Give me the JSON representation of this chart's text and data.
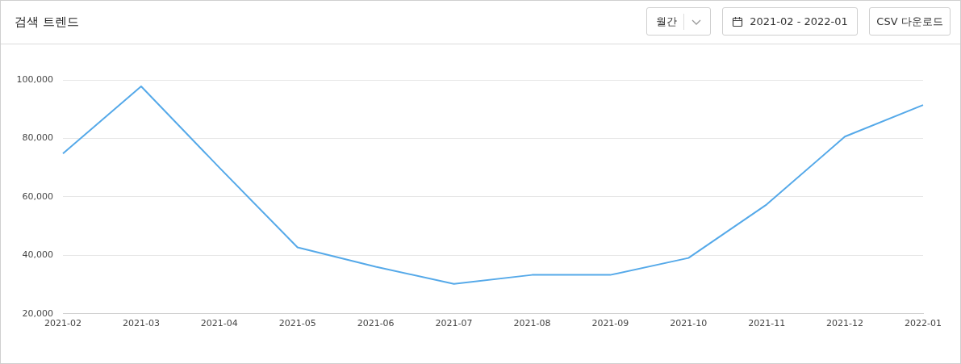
{
  "chart_data": {
    "type": "line",
    "title": "검색 트렌드",
    "annotations": [
      "월간",
      "2021-02 - 2022-01",
      "CSV 다운로드"
    ],
    "categories": [
      "2021-02",
      "2021-03",
      "2021-04",
      "2021-05",
      "2021-06",
      "2021-07",
      "2021-08",
      "2021-09",
      "2021-10",
      "2021-11",
      "2021-12",
      "2022-01"
    ],
    "series": [
      {
        "color": "#55a9e9",
        "values": [
          74800,
          97800,
          70000,
          42700,
          36100,
          30200,
          33300,
          33300,
          39100,
          57400,
          80600,
          91400
        ]
      }
    ],
    "ylim": [
      20000,
      100000
    ],
    "yticks": [
      {
        "value": 20000,
        "label": "20,000"
      },
      {
        "value": 40000,
        "label": "40,000"
      },
      {
        "value": 60000,
        "label": "60,000"
      },
      {
        "value": 80000,
        "label": "80,000"
      },
      {
        "value": 100000,
        "label": "100,000"
      }
    ],
    "grid": "y",
    "legend": false,
    "marker": "none",
    "line_style": "solid"
  }
}
